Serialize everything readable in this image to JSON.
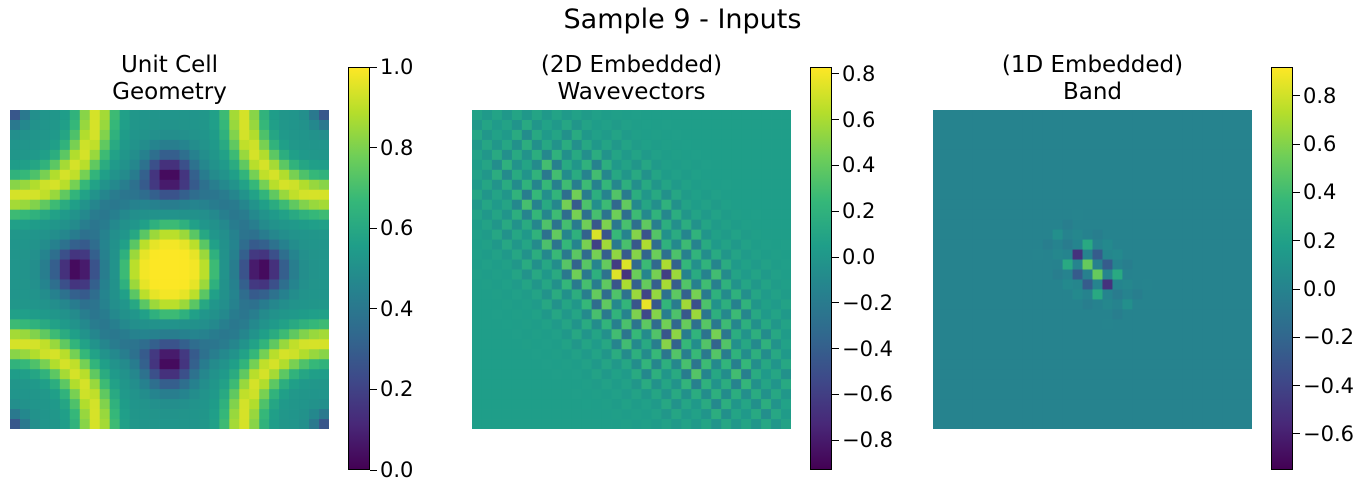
{
  "suptitle": "Sample 9 - Inputs",
  "colors": {
    "viridis": [
      "#440154",
      "#482878",
      "#3e4989",
      "#31688e",
      "#26828e",
      "#1f9e89",
      "#35b779",
      "#6ece58",
      "#b5de2b",
      "#fde725"
    ]
  },
  "chart_data": [
    {
      "type": "heatmap",
      "title": "Unit Cell\nGeometry",
      "grid_size": 32,
      "colormap": "viridis",
      "clim": [
        0.0,
        1.0
      ],
      "colorbar_ticks": [
        "0.0",
        "0.2",
        "0.4",
        "0.6",
        "0.8",
        "1.0"
      ],
      "colorbar_tick_values": [
        0.0,
        0.2,
        0.4,
        0.6,
        0.8,
        1.0
      ],
      "pattern": "symmetric unit cell: bright disk at center, dark spots at edge midpoints, bright arcs at corners"
    },
    {
      "type": "heatmap",
      "title": "(2D Embedded)\nWavevectors",
      "grid_size": 32,
      "colormap": "viridis",
      "clim": [
        -0.93,
        0.83
      ],
      "colorbar_ticks": [
        "0.8",
        "0.6",
        "0.4",
        "0.2",
        "0.0",
        "−0.2",
        "−0.4",
        "−0.6",
        "−0.8"
      ],
      "colorbar_tick_values": [
        0.8,
        0.6,
        0.4,
        0.2,
        0.0,
        -0.2,
        -0.4,
        -0.6,
        -0.8
      ],
      "background_value": 0.05,
      "pattern": "checkerboard band along the anti-diagonal, strongest near center"
    },
    {
      "type": "heatmap",
      "title": "(1D Embedded)\nBand",
      "grid_size": 32,
      "colormap": "viridis",
      "clim": [
        -0.75,
        0.92
      ],
      "colorbar_ticks": [
        "0.8",
        "0.6",
        "0.4",
        "0.2",
        "0.0",
        "−0.2",
        "−0.4",
        "−0.6"
      ],
      "colorbar_tick_values": [
        0.8,
        0.6,
        0.4,
        0.2,
        0.0,
        -0.2,
        -0.4,
        -0.6
      ],
      "background_value": 0.0,
      "pattern": "small oscillating blob at center tilted along the main diagonal"
    }
  ]
}
